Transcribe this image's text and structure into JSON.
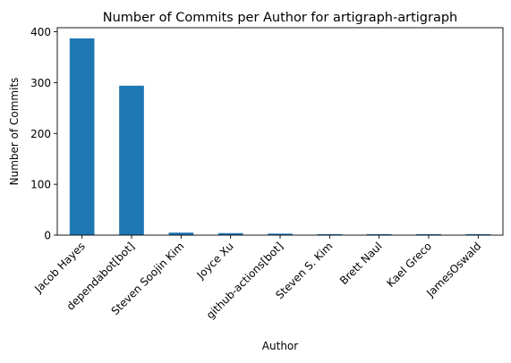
{
  "chart_data": {
    "type": "bar",
    "title": "Number of Commits per Author for artigraph-artigraph",
    "xlabel": "Author",
    "ylabel": "Number of Commits",
    "categories": [
      "Jacob Hayes",
      "dependabot[bot]",
      "Steven Soojin Kim",
      "Joyce Xu",
      "github-actions[bot]",
      "Steven S. Kim",
      "Brett Naul",
      "Kael Greco",
      "JamesOswald"
    ],
    "values": [
      387,
      294,
      5,
      4,
      3,
      2,
      2,
      2,
      2
    ],
    "ylim": [
      0,
      408
    ],
    "yticks": [
      0,
      100,
      200,
      300,
      400
    ],
    "grid": false,
    "legend": "none",
    "bar_color": "#1f77b4"
  }
}
